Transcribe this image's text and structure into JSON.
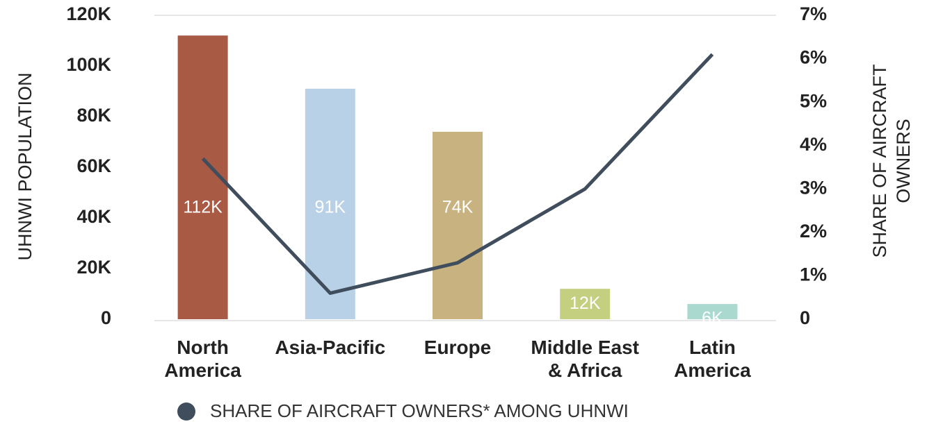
{
  "chart_data": {
    "type": "bar",
    "categories": [
      "North\nAmerica",
      "Asia-Pacific",
      "Europe",
      "Middle East\n& Africa",
      "Latin\nAmerica"
    ],
    "series": [
      {
        "values": [
          112000,
          91000,
          74000,
          12000,
          6000
        ],
        "value_labels": [
          "112K",
          "91K",
          "74K",
          "12K",
          "6K"
        ],
        "colors": [
          "#a85a45",
          "#b9d1e7",
          "#c8b27f",
          "#c4cf80",
          "#a9d9cf"
        ]
      },
      {
        "name": "SHARE OF AIRCRAFT OWNERS* AMONG UHNWI",
        "type": "line",
        "axis": "y2",
        "color": "#3f4d5c",
        "values": [
          3.7,
          0.6,
          1.3,
          3.0,
          6.1
        ]
      }
    ],
    "ylabel": "UHNWI POPULATION",
    "y2label": "SHARE OF AIRCRAFT\nOWNERS",
    "ylim": [
      0,
      120000
    ],
    "yticks": [
      {
        "value": 0,
        "label": "0"
      },
      {
        "value": 20000,
        "label": "20K"
      },
      {
        "value": 40000,
        "label": "40K"
      },
      {
        "value": 60000,
        "label": "60K"
      },
      {
        "value": 80000,
        "label": "80K"
      },
      {
        "value": 100000,
        "label": "100K"
      },
      {
        "value": 120000,
        "label": "120K"
      }
    ],
    "y2lim": [
      0,
      7
    ],
    "y2ticks": [
      {
        "value": 0,
        "label": "0"
      },
      {
        "value": 1,
        "label": "1%"
      },
      {
        "value": 2,
        "label": "2%"
      },
      {
        "value": 3,
        "label": "3%"
      },
      {
        "value": 4,
        "label": "4%"
      },
      {
        "value": 5,
        "label": "5%"
      },
      {
        "value": 6,
        "label": "6%"
      },
      {
        "value": 7,
        "label": "7%"
      }
    ]
  }
}
